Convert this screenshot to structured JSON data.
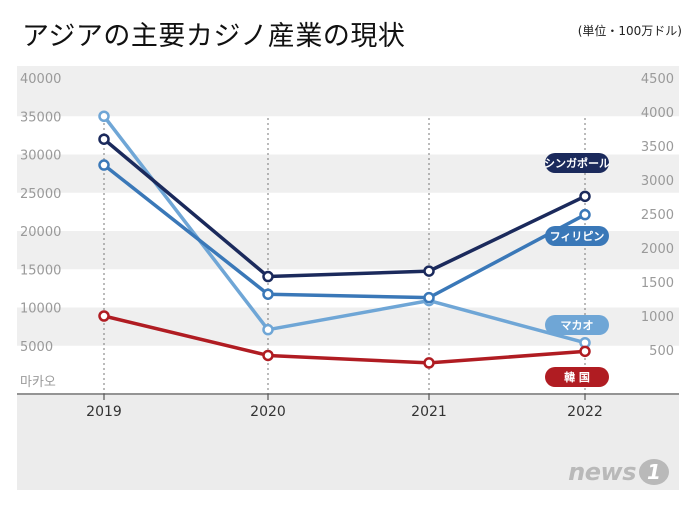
{
  "header": {
    "title": "アジアの主要カジノ産業の現状",
    "unit": "(単位・100万ドル)"
  },
  "logo": {
    "text": "news",
    "mark": "1"
  },
  "chart_data": {
    "type": "line",
    "title": "アジアの主要カジノ産業の現状",
    "categories": [
      "2019",
      "2020",
      "2021",
      "2022"
    ],
    "y_left": {
      "label": "마카오",
      "ticks": [
        5000,
        10000,
        15000,
        20000,
        25000,
        30000,
        35000,
        40000
      ],
      "range": [
        0,
        40000
      ]
    },
    "y_right": {
      "ticks": [
        500,
        1000,
        1500,
        2000,
        2500,
        3000,
        3500,
        4000,
        4500
      ],
      "range": [
        0,
        4500
      ]
    },
    "grid": "alternating horizontal bands",
    "series": [
      {
        "name": "シンガポール",
        "axis": "right",
        "color": "#1b2a5c",
        "values": [
          3600,
          1580,
          1660,
          2760
        ]
      },
      {
        "name": "フィリピン",
        "axis": "right",
        "color": "#3a78b8",
        "values": [
          3220,
          1320,
          1270,
          2490
        ]
      },
      {
        "name": "マカオ",
        "axis": "left",
        "color": "#6fa6d6",
        "values": [
          35000,
          7100,
          10900,
          5400
        ]
      },
      {
        "name": "韓 国",
        "axis": "right",
        "color": "#b01c22",
        "values": [
          1000,
          420,
          310,
          480
        ]
      }
    ]
  }
}
